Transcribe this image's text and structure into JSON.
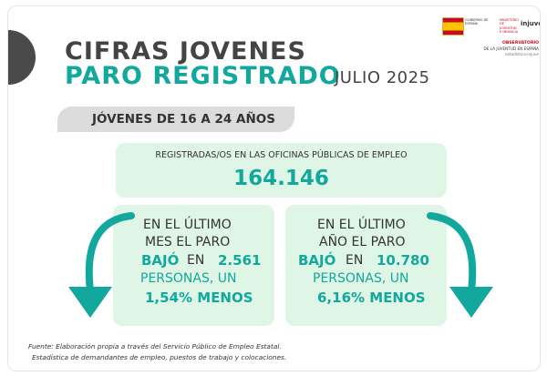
{
  "header": {
    "title_line1": "CIFRAS JOVENES",
    "title_line2": "PARO REGISTRADO",
    "period": "JULIO 2025"
  },
  "logos": {
    "ministry_text": "GOBIERNO DE ESPAÑA",
    "ministry_text2": "MINISTERIO DE JUVENTUD E INFANCIA",
    "injuve": "injuve",
    "observatory_title": "OBSERVATORIO",
    "observatory_sub": "DE LA JUVENTUD EN ESPAÑA",
    "observatory_sub2": "estadística-injuve"
  },
  "age_band": {
    "label": "JÓVENES DE 16 A 24 AÑOS"
  },
  "total": {
    "label": "REGISTRADAS/OS EN LAS OFICINAS PÚBLICAS DE EMPLEO",
    "value": "164.146"
  },
  "monthly": {
    "line1": "EN EL ÚLTIMO",
    "line2": "MES EL PARO",
    "verb": "BAJÓ",
    "preposition": "EN",
    "amount": "2.561",
    "line4": "PERSONAS, UN",
    "percent": "1,54% MENOS"
  },
  "yearly": {
    "line1": "EN EL ÚLTIMO",
    "line2": "AÑO EL PARO",
    "verb": "BAJÓ",
    "preposition": "EN",
    "amount": "10.780",
    "line4": "PERSONAS, UN",
    "percent": "6,16% MENOS"
  },
  "source": {
    "line1": "Fuente: Elaboración propia a través del Servicio Público de Empleo Estatal.",
    "line2": "Estadística de demandantes de empleo, puestos de trabajo y colocaciones."
  },
  "colors": {
    "accent": "#12a89d",
    "dark": "#444444",
    "box_fill": "#dff5e5",
    "band_fill": "#dcdcdc"
  }
}
